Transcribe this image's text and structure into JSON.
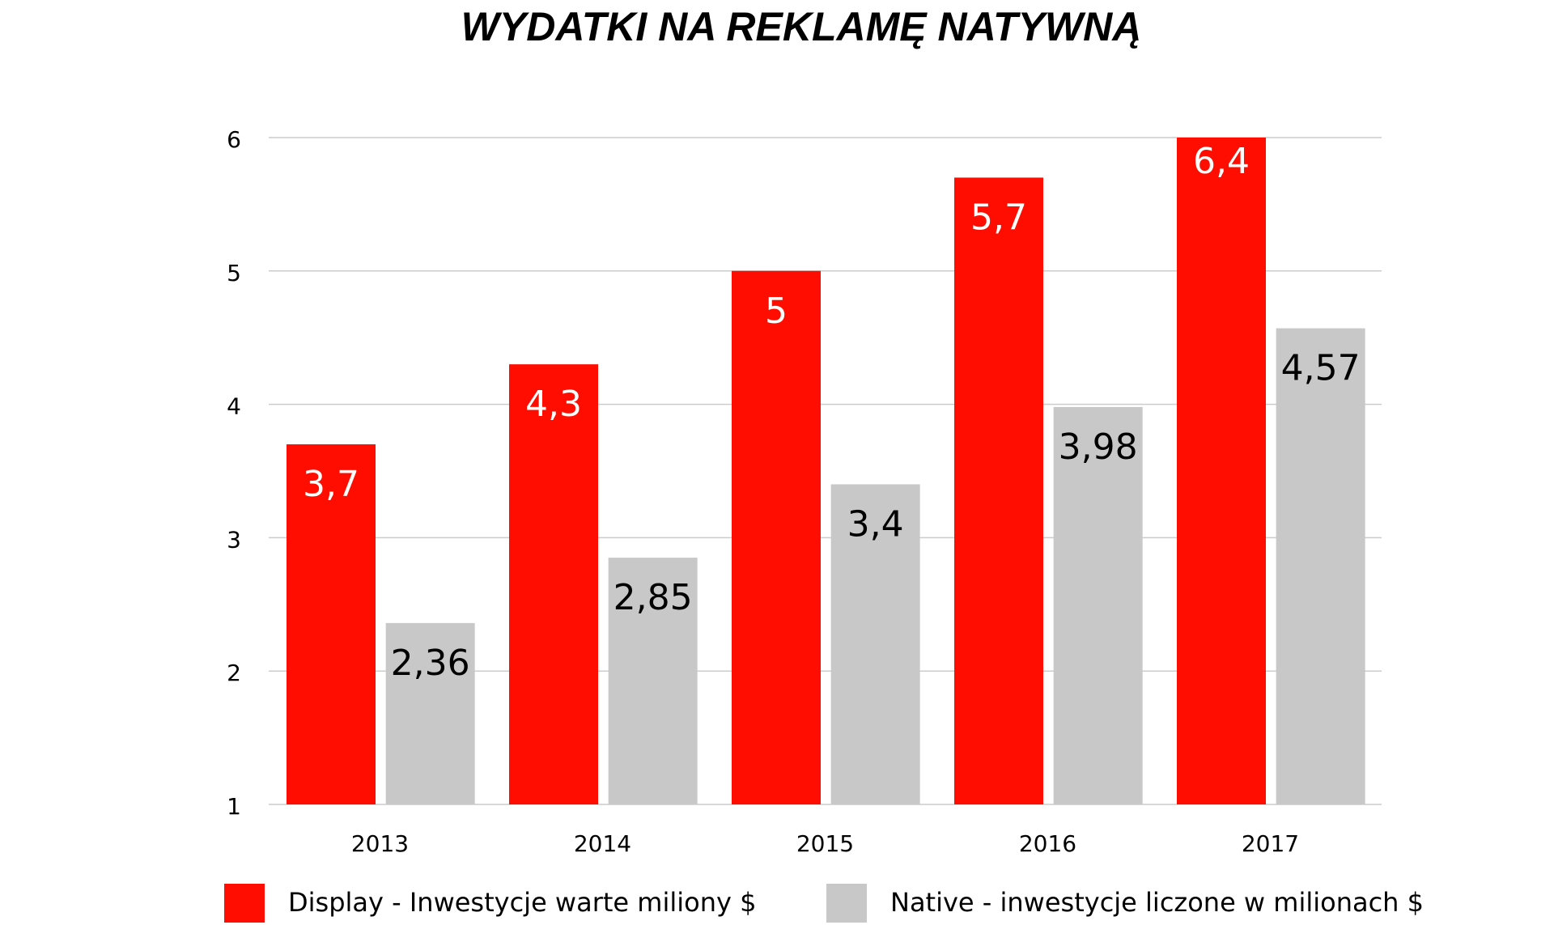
{
  "chart_data": {
    "type": "bar",
    "title": "WYDATKI NA REKLAMĘ NATYWNĄ",
    "categories": [
      "2013",
      "2014",
      "2015",
      "2016",
      "2017"
    ],
    "series": [
      {
        "name": "Display - Inwestycje warte miliony $",
        "color": "#ff0d00",
        "label_color": "#ffffff",
        "values": [
          3.7,
          4.3,
          5,
          5.7,
          6.4
        ],
        "value_labels": [
          "3,7",
          "4,3",
          "5",
          "5,7",
          "6,4"
        ]
      },
      {
        "name": "Native - inwestycje liczone w milionach $",
        "color": "#c8c8c8",
        "label_color": "#000000",
        "values": [
          2.36,
          2.85,
          3.4,
          3.98,
          4.57
        ],
        "value_labels": [
          "2,36",
          "2,85",
          "3,4",
          "3,98",
          "4,57"
        ]
      }
    ],
    "ylim": [
      1,
      6
    ],
    "yticks": [
      1,
      2,
      3,
      4,
      5,
      6
    ],
    "grid": true,
    "legend": "bottom"
  }
}
